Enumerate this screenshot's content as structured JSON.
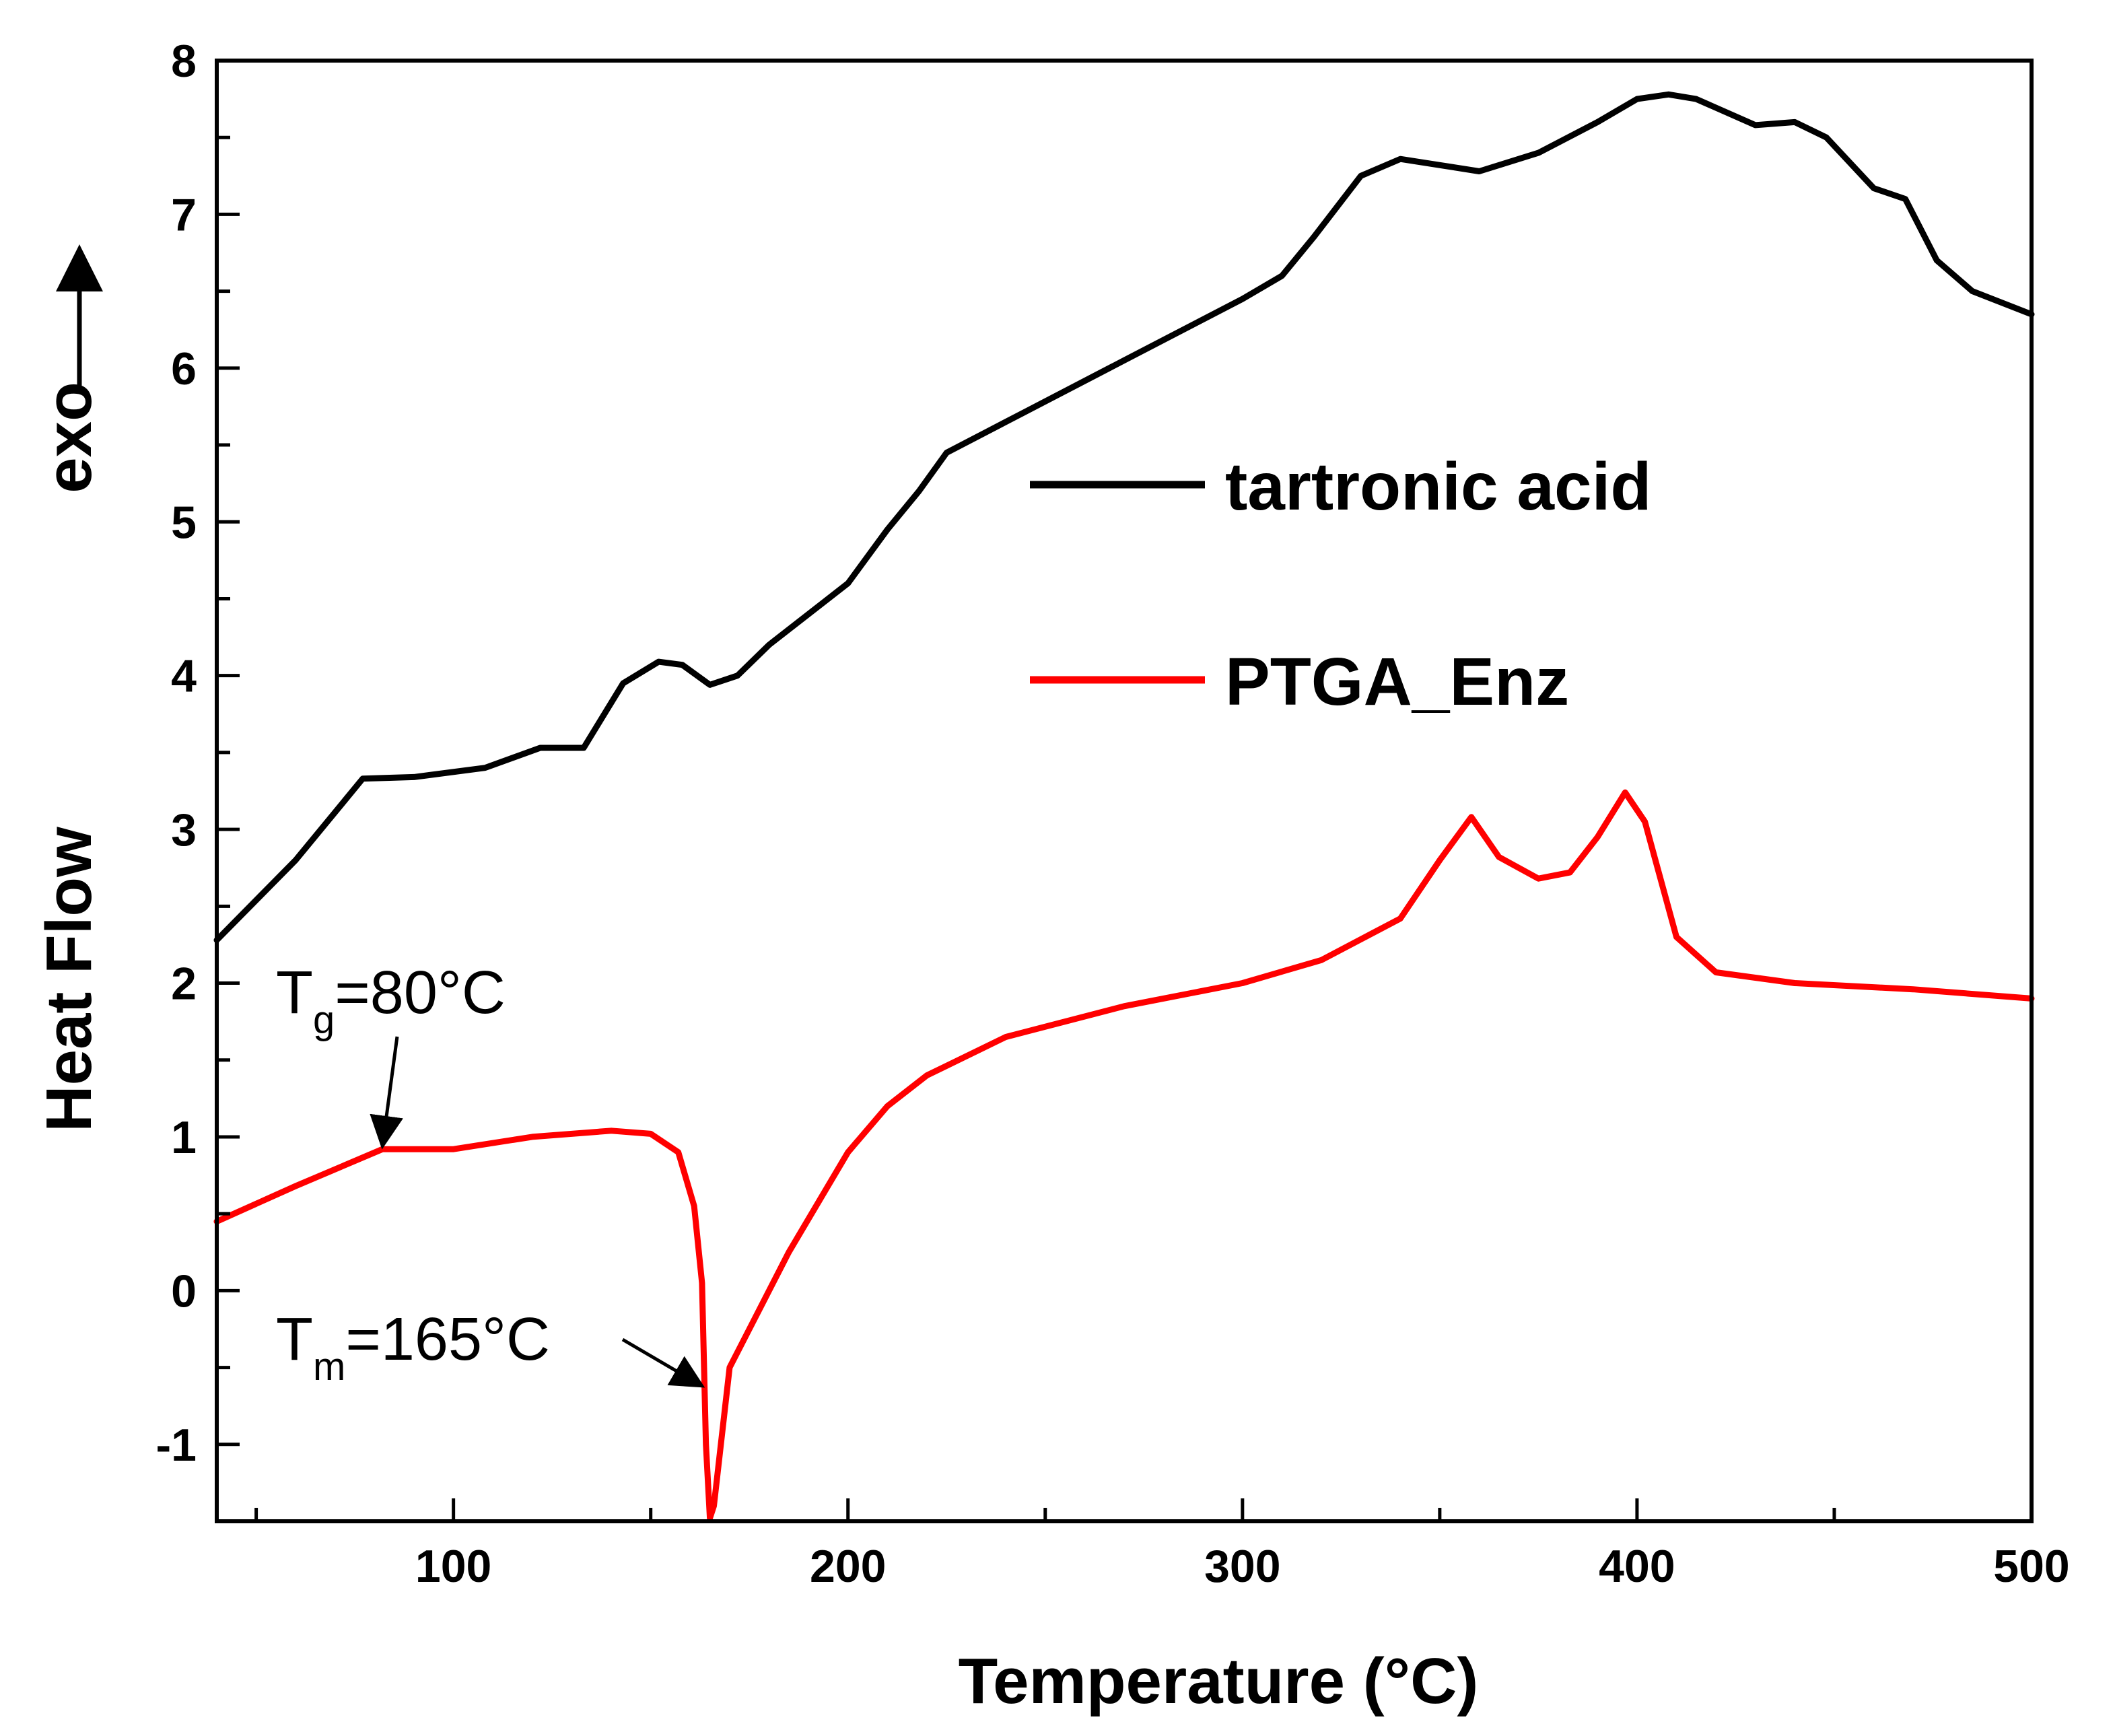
{
  "chart_data": {
    "type": "line",
    "title": "",
    "xlabel": "Temperature (°C)",
    "ylabel": "Heat Flow",
    "ylabel_top": "exo",
    "xlim": [
      40,
      500
    ],
    "ylim": [
      -1.5,
      8
    ],
    "x_ticks": [
      100,
      200,
      300,
      400,
      500
    ],
    "x_tick_labels": [
      "100",
      "200",
      "300",
      "400",
      "500"
    ],
    "y_ticks": [
      -1,
      0,
      1,
      2,
      3,
      4,
      5,
      6,
      7,
      8
    ],
    "y_tick_labels": [
      "-1",
      "0",
      "1",
      "2",
      "3",
      "4",
      "5",
      "6",
      "7",
      "8"
    ],
    "legend_position": "center-right",
    "grid": false,
    "series": [
      {
        "name": "tartronic acid",
        "color": "#000000",
        "points": [
          [
            40,
            2.28
          ],
          [
            60,
            2.8
          ],
          [
            77,
            3.33
          ],
          [
            90,
            3.34
          ],
          [
            108,
            3.4
          ],
          [
            122,
            3.53
          ],
          [
            133,
            3.53
          ],
          [
            143,
            3.95
          ],
          [
            152,
            4.09
          ],
          [
            158,
            4.07
          ],
          [
            165,
            3.94
          ],
          [
            172,
            4.0
          ],
          [
            180,
            4.2
          ],
          [
            200,
            4.6
          ],
          [
            210,
            4.95
          ],
          [
            218,
            5.2
          ],
          [
            225,
            5.45
          ],
          [
            240,
            5.65
          ],
          [
            270,
            6.05
          ],
          [
            300,
            6.45
          ],
          [
            310,
            6.6
          ],
          [
            318,
            6.85
          ],
          [
            330,
            7.25
          ],
          [
            340,
            7.36
          ],
          [
            350,
            7.32
          ],
          [
            360,
            7.28
          ],
          [
            375,
            7.4
          ],
          [
            390,
            7.6
          ],
          [
            400,
            7.75
          ],
          [
            408,
            7.78
          ],
          [
            415,
            7.75
          ],
          [
            430,
            7.58
          ],
          [
            440,
            7.6
          ],
          [
            448,
            7.5
          ],
          [
            460,
            7.17
          ],
          [
            468,
            7.1
          ],
          [
            476,
            6.7
          ],
          [
            485,
            6.5
          ],
          [
            500,
            6.35
          ]
        ]
      },
      {
        "name": "PTGA_Enz",
        "color": "#ff0000",
        "points": [
          [
            40,
            0.45
          ],
          [
            60,
            0.68
          ],
          [
            82,
            0.92
          ],
          [
            100,
            0.92
          ],
          [
            120,
            1.0
          ],
          [
            140,
            1.04
          ],
          [
            150,
            1.02
          ],
          [
            157,
            0.9
          ],
          [
            161,
            0.55
          ],
          [
            163,
            0.05
          ],
          [
            164,
            -1.0
          ],
          [
            165,
            -1.48
          ],
          [
            166,
            -1.4
          ],
          [
            170,
            -0.5
          ],
          [
            175,
            -0.25
          ],
          [
            185,
            0.25
          ],
          [
            200,
            0.9
          ],
          [
            210,
            1.2
          ],
          [
            220,
            1.4
          ],
          [
            240,
            1.65
          ],
          [
            270,
            1.85
          ],
          [
            300,
            2.0
          ],
          [
            320,
            2.15
          ],
          [
            340,
            2.42
          ],
          [
            350,
            2.8
          ],
          [
            358,
            3.08
          ],
          [
            365,
            2.82
          ],
          [
            375,
            2.68
          ],
          [
            383,
            2.72
          ],
          [
            390,
            2.95
          ],
          [
            397,
            3.24
          ],
          [
            402,
            3.05
          ],
          [
            410,
            2.3
          ],
          [
            420,
            2.07
          ],
          [
            440,
            2.0
          ],
          [
            470,
            1.96
          ],
          [
            500,
            1.9
          ]
        ]
      }
    ],
    "annotations": [
      {
        "main": "T",
        "sub": "g",
        "rest": "=80°C",
        "target": [
          82,
          0.94
        ]
      },
      {
        "main": "T",
        "sub": "m",
        "rest": "=165°C",
        "target": [
          163,
          -0.62
        ]
      }
    ]
  }
}
